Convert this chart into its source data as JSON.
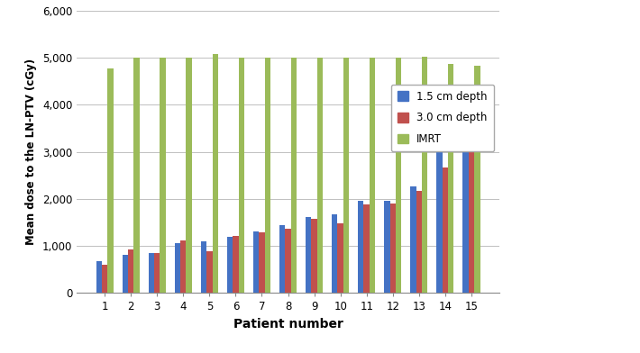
{
  "patients": [
    1,
    2,
    3,
    4,
    5,
    6,
    7,
    8,
    9,
    10,
    11,
    12,
    13,
    14,
    15
  ],
  "depth_1_5": [
    670,
    820,
    850,
    1060,
    1100,
    1200,
    1300,
    1450,
    1620,
    1670,
    1950,
    1960,
    2270,
    3000,
    3400
  ],
  "depth_3_0": [
    600,
    920,
    840,
    1120,
    880,
    1210,
    1280,
    1370,
    1570,
    1480,
    1890,
    1900,
    2160,
    2670,
    3330
  ],
  "imrt": [
    4780,
    5000,
    5010,
    5010,
    5080,
    5010,
    5010,
    5010,
    5010,
    5010,
    5010,
    5010,
    5020,
    4870,
    4820
  ],
  "color_1_5": "#4472C4",
  "color_3_0": "#C0504D",
  "color_imrt": "#9BBB59",
  "ylabel": "Mean dose to the LN-PTV (cGy)",
  "xlabel": "Patient number",
  "ylim": [
    0,
    6000
  ],
  "yticks": [
    0,
    1000,
    2000,
    3000,
    4000,
    5000,
    6000
  ],
  "ytick_labels": [
    "0",
    "1,000",
    "2,000",
    "3,000",
    "4,000",
    "5,000",
    "6,000"
  ],
  "legend_labels": [
    "1.5 cm depth",
    "3.0 cm depth",
    "IMRT"
  ],
  "bar_width": 0.22,
  "figsize": [
    7.1,
    3.92
  ],
  "dpi": 100
}
